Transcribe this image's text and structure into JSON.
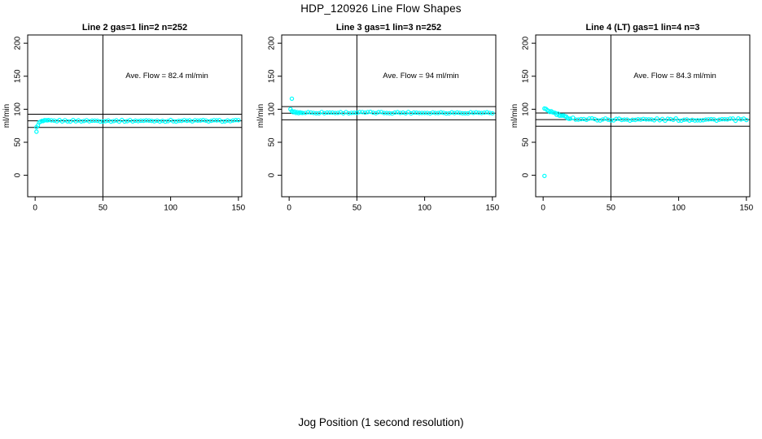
{
  "figure": {
    "title": "HDP_120926  Line Flow Shapes",
    "xlabel": "Jog Position (1 second resolution)"
  },
  "chart_data": [
    {
      "type": "scatter",
      "title": "Line 2 gas=1 lin=2 n=252",
      "annotation": "Ave. Flow =  82.4  ml/min",
      "ave_flow": 82.4,
      "ylabel": "ml/min",
      "xlim": [
        -5.5,
        152.5
      ],
      "ylim": [
        -32.5,
        212.5
      ],
      "xticks": [
        0,
        50,
        100,
        150
      ],
      "yticks": [
        0,
        50,
        100,
        150,
        200
      ],
      "vline": 50,
      "hlines": {
        "upper": 92.4,
        "mean": 82.4,
        "lower": 72.4
      },
      "marker_color": "#00ffff",
      "jitter": 1.3,
      "outliers": [
        [
          1,
          66
        ]
      ],
      "points": [
        [
          1,
          72
        ],
        [
          2,
          76.5
        ],
        [
          3,
          79.2
        ],
        [
          4,
          80.8
        ],
        [
          5,
          81.6
        ],
        [
          6,
          82
        ],
        [
          7,
          82.2
        ],
        [
          8,
          82.3
        ],
        [
          9,
          82.4
        ],
        [
          10,
          82.4
        ],
        [
          12,
          82.5
        ],
        [
          14,
          82.5
        ],
        [
          16,
          82.5
        ],
        [
          18,
          82.5
        ],
        [
          20,
          82.5
        ],
        [
          22,
          82.5
        ],
        [
          24,
          82.5
        ],
        [
          26,
          82.5
        ],
        [
          28,
          82.5
        ],
        [
          30,
          82.5
        ],
        [
          32,
          82.5
        ],
        [
          34,
          82.5
        ],
        [
          36,
          82.5
        ],
        [
          38,
          82.5
        ],
        [
          40,
          82.5
        ],
        [
          42,
          82.5
        ],
        [
          44,
          82.5
        ],
        [
          46,
          82.5
        ],
        [
          48,
          82.5
        ],
        [
          50,
          82.5
        ],
        [
          52,
          82.5
        ],
        [
          54,
          82.5
        ],
        [
          56,
          82.5
        ],
        [
          58,
          82.5
        ],
        [
          60,
          82.5
        ],
        [
          62,
          82.5
        ],
        [
          64,
          82.5
        ],
        [
          66,
          82.5
        ],
        [
          68,
          82.5
        ],
        [
          70,
          82.5
        ],
        [
          72,
          82.5
        ],
        [
          74,
          82.5
        ],
        [
          76,
          82.5
        ],
        [
          78,
          82.5
        ],
        [
          80,
          82.5
        ],
        [
          82,
          82.5
        ],
        [
          84,
          82.5
        ],
        [
          86,
          82.5
        ],
        [
          88,
          82.5
        ],
        [
          90,
          82.5
        ],
        [
          92,
          82.5
        ],
        [
          94,
          82.5
        ],
        [
          96,
          82.5
        ],
        [
          98,
          82.5
        ],
        [
          100,
          82.5
        ],
        [
          102,
          82.5
        ],
        [
          104,
          82.5
        ],
        [
          106,
          82.5
        ],
        [
          108,
          82.5
        ],
        [
          110,
          82.5
        ],
        [
          112,
          82.5
        ],
        [
          114,
          82.5
        ],
        [
          116,
          82.5
        ],
        [
          118,
          82.5
        ],
        [
          120,
          82.5
        ],
        [
          122,
          82.5
        ],
        [
          124,
          82.5
        ],
        [
          126,
          82.5
        ],
        [
          128,
          82.5
        ],
        [
          130,
          82.5
        ],
        [
          132,
          82.5
        ],
        [
          134,
          82.5
        ],
        [
          136,
          82.5
        ],
        [
          138,
          82.5
        ],
        [
          140,
          82.5
        ],
        [
          142,
          82.5
        ],
        [
          144,
          82.5
        ],
        [
          146,
          82.5
        ],
        [
          148,
          82.5
        ],
        [
          150,
          82.5
        ]
      ]
    },
    {
      "type": "scatter",
      "title": "Line 3 gas=1 lin=3 n=252",
      "annotation": "Ave. Flow =  94  ml/min",
      "ave_flow": 94,
      "ylabel": "ml/min",
      "xlim": [
        -5.5,
        152.5
      ],
      "ylim": [
        -32.5,
        212.5
      ],
      "xticks": [
        0,
        50,
        100,
        150
      ],
      "yticks": [
        0,
        50,
        100,
        150,
        200
      ],
      "vline": 50,
      "hlines": {
        "upper": 104,
        "mean": 94,
        "lower": 84
      },
      "marker_color": "#00ffff",
      "jitter": 1.2,
      "outliers": [
        [
          2,
          116
        ]
      ],
      "points": [
        [
          1,
          99.3
        ],
        [
          2,
          97.2
        ],
        [
          3,
          96.2
        ],
        [
          4,
          95.6
        ],
        [
          5,
          95.3
        ],
        [
          6,
          95.1
        ],
        [
          7,
          95
        ],
        [
          8,
          95
        ],
        [
          9,
          94.9
        ],
        [
          10,
          94.9
        ],
        [
          12,
          94.9
        ],
        [
          14,
          94.9
        ],
        [
          16,
          94.9
        ],
        [
          18,
          94.9
        ],
        [
          20,
          94.9
        ],
        [
          22,
          94.9
        ],
        [
          24,
          94.9
        ],
        [
          26,
          94.9
        ],
        [
          28,
          94.9
        ],
        [
          30,
          94.9
        ],
        [
          32,
          94.9
        ],
        [
          34,
          94.9
        ],
        [
          36,
          94.9
        ],
        [
          38,
          94.9
        ],
        [
          40,
          94.9
        ],
        [
          42,
          94.9
        ],
        [
          44,
          94.9
        ],
        [
          46,
          94.9
        ],
        [
          48,
          94.9
        ],
        [
          50,
          94.9
        ],
        [
          52,
          94.9
        ],
        [
          54,
          94.9
        ],
        [
          56,
          94.9
        ],
        [
          58,
          94.9
        ],
        [
          60,
          94.9
        ],
        [
          62,
          94.9
        ],
        [
          64,
          94.8
        ],
        [
          66,
          94.8
        ],
        [
          68,
          94.8
        ],
        [
          70,
          94.8
        ],
        [
          72,
          94.8
        ],
        [
          74,
          94.8
        ],
        [
          76,
          94.8
        ],
        [
          78,
          94.8
        ],
        [
          80,
          94.8
        ],
        [
          82,
          94.8
        ],
        [
          84,
          94.8
        ],
        [
          86,
          94.8
        ],
        [
          88,
          94.8
        ],
        [
          90,
          94.8
        ],
        [
          92,
          94.8
        ],
        [
          94,
          94.8
        ],
        [
          96,
          94.8
        ],
        [
          98,
          94.8
        ],
        [
          100,
          94.8
        ],
        [
          102,
          94.8
        ],
        [
          104,
          94.8
        ],
        [
          106,
          94.8
        ],
        [
          108,
          94.8
        ],
        [
          110,
          94.8
        ],
        [
          112,
          94.8
        ],
        [
          114,
          94.8
        ],
        [
          116,
          94.8
        ],
        [
          118,
          94.8
        ],
        [
          120,
          94.8
        ],
        [
          122,
          94.8
        ],
        [
          124,
          94.8
        ],
        [
          126,
          94.8
        ],
        [
          128,
          94.8
        ],
        [
          130,
          94.8
        ],
        [
          132,
          94.8
        ],
        [
          134,
          94.8
        ],
        [
          136,
          94.8
        ],
        [
          138,
          94.8
        ],
        [
          140,
          94.8
        ],
        [
          142,
          94.8
        ],
        [
          144,
          94.8
        ],
        [
          146,
          94.8
        ],
        [
          148,
          94.8
        ],
        [
          150,
          94.8
        ]
      ]
    },
    {
      "type": "scatter",
      "title": "Line 4 (LT) gas=1 lin=4 n=3",
      "annotation": "Ave. Flow =  84.3  ml/min",
      "ave_flow": 84.3,
      "ylabel": "ml/min",
      "xlim": [
        -5.5,
        152.5
      ],
      "ylim": [
        -32.5,
        212.5
      ],
      "xticks": [
        0,
        50,
        100,
        150
      ],
      "yticks": [
        0,
        50,
        100,
        150,
        200
      ],
      "vline": 50,
      "hlines": {
        "upper": 94.3,
        "mean": 84.3,
        "lower": 74.3
      },
      "marker_color": "#00ffff",
      "jitter": 1.8,
      "outliers": [
        [
          1,
          -1
        ]
      ],
      "points": [
        [
          1,
          99.5
        ],
        [
          2,
          99.2
        ],
        [
          3,
          98.6
        ],
        [
          4,
          97.9
        ],
        [
          5,
          97.1
        ],
        [
          6,
          96.2
        ],
        [
          7,
          95.3
        ],
        [
          8,
          94.4
        ],
        [
          9,
          93.5
        ],
        [
          10,
          92.6
        ],
        [
          11,
          91.8
        ],
        [
          12,
          91
        ],
        [
          13,
          90.3
        ],
        [
          14,
          89.6
        ],
        [
          15,
          89
        ],
        [
          16,
          88.4
        ],
        [
          17,
          87.9
        ],
        [
          18,
          87.5
        ],
        [
          19,
          87.1
        ],
        [
          20,
          86.8
        ],
        [
          22,
          86.2
        ],
        [
          24,
          85.8
        ],
        [
          26,
          85.5
        ],
        [
          28,
          85.2
        ],
        [
          30,
          85
        ],
        [
          32,
          84.9
        ],
        [
          34,
          84.8
        ],
        [
          36,
          84.8
        ],
        [
          38,
          84.7
        ],
        [
          40,
          84.7
        ],
        [
          42,
          84.6
        ],
        [
          44,
          84.6
        ],
        [
          46,
          84.6
        ],
        [
          48,
          84.5
        ],
        [
          50,
          84.5
        ],
        [
          52,
          84.5
        ],
        [
          54,
          84.5
        ],
        [
          56,
          84.5
        ],
        [
          58,
          84.5
        ],
        [
          60,
          84.4
        ],
        [
          62,
          84.4
        ],
        [
          64,
          84.4
        ],
        [
          66,
          84.4
        ],
        [
          68,
          84.4
        ],
        [
          70,
          84.4
        ],
        [
          72,
          84.4
        ],
        [
          74,
          84.4
        ],
        [
          76,
          84.4
        ],
        [
          78,
          84.4
        ],
        [
          80,
          84.4
        ],
        [
          82,
          84.4
        ],
        [
          84,
          84.4
        ],
        [
          86,
          84.3
        ],
        [
          88,
          84.3
        ],
        [
          90,
          84.3
        ],
        [
          92,
          84.3
        ],
        [
          94,
          84.3
        ],
        [
          96,
          84.3
        ],
        [
          98,
          84.3
        ],
        [
          100,
          84.3
        ],
        [
          102,
          84.3
        ],
        [
          104,
          84.3
        ],
        [
          106,
          84.3
        ],
        [
          108,
          84.3
        ],
        [
          110,
          84.3
        ],
        [
          112,
          84.3
        ],
        [
          114,
          84.3
        ],
        [
          116,
          84.3
        ],
        [
          118,
          84.3
        ],
        [
          120,
          84.3
        ],
        [
          122,
          84.3
        ],
        [
          124,
          84.3
        ],
        [
          126,
          84.3
        ],
        [
          128,
          84.3
        ],
        [
          130,
          84.3
        ],
        [
          132,
          84.3
        ],
        [
          134,
          84.3
        ],
        [
          136,
          84.3
        ],
        [
          138,
          84.3
        ],
        [
          140,
          84.3
        ],
        [
          142,
          84.3
        ],
        [
          144,
          84.3
        ],
        [
          146,
          84.3
        ],
        [
          148,
          84.3
        ],
        [
          150,
          84.3
        ]
      ]
    }
  ]
}
